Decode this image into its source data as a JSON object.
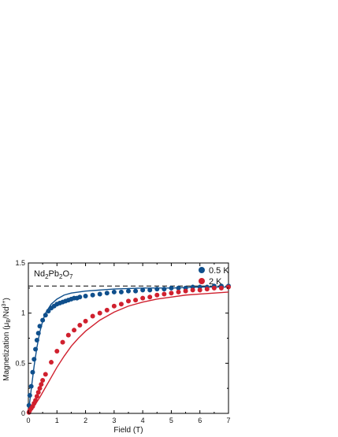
{
  "chart_data": {
    "type": "scatter",
    "annotation": "Nd2Pb2O7",
    "xlabel": "Field (T)",
    "ylabel": "Magnetization (μB/Nd3+)",
    "xlim": [
      0,
      7
    ],
    "ylim": [
      0,
      1.5
    ],
    "x_ticks": [
      "0",
      "1",
      "2",
      "3",
      "4",
      "5",
      "6",
      "7"
    ],
    "y_ticks": [
      "0",
      "0.5",
      "1",
      "1.5"
    ],
    "legend_position": "top-right",
    "saturation_line": 1.27,
    "series": [
      {
        "name": "0.5 K",
        "color": "#0f4f8c",
        "points": [
          [
            0.02,
            0.08
          ],
          [
            0.05,
            0.18
          ],
          [
            0.1,
            0.27
          ],
          [
            0.15,
            0.41
          ],
          [
            0.2,
            0.54
          ],
          [
            0.25,
            0.64
          ],
          [
            0.3,
            0.73
          ],
          [
            0.35,
            0.8
          ],
          [
            0.4,
            0.87
          ],
          [
            0.5,
            0.93
          ],
          [
            0.6,
            0.98
          ],
          [
            0.7,
            1.02
          ],
          [
            0.8,
            1.05
          ],
          [
            0.9,
            1.07
          ],
          [
            1.0,
            1.09
          ],
          [
            1.1,
            1.1
          ],
          [
            1.2,
            1.11
          ],
          [
            1.3,
            1.12
          ],
          [
            1.4,
            1.13
          ],
          [
            1.5,
            1.14
          ],
          [
            1.6,
            1.15
          ],
          [
            1.7,
            1.15
          ],
          [
            1.8,
            1.16
          ],
          [
            2.0,
            1.17
          ],
          [
            2.25,
            1.18
          ],
          [
            2.5,
            1.19
          ],
          [
            2.75,
            1.2
          ],
          [
            3.0,
            1.21
          ],
          [
            3.25,
            1.21
          ],
          [
            3.5,
            1.22
          ],
          [
            3.75,
            1.22
          ],
          [
            4.0,
            1.23
          ],
          [
            4.25,
            1.23
          ],
          [
            4.5,
            1.24
          ],
          [
            4.75,
            1.24
          ],
          [
            5.0,
            1.25
          ],
          [
            5.25,
            1.25
          ],
          [
            5.5,
            1.25
          ],
          [
            5.75,
            1.26
          ],
          [
            6.0,
            1.26
          ],
          [
            6.25,
            1.26
          ],
          [
            6.5,
            1.27
          ],
          [
            6.75,
            1.27
          ],
          [
            7.0,
            1.27
          ]
        ]
      },
      {
        "name": "2 K",
        "color": "#d0202e",
        "points": [
          [
            0.02,
            0.01
          ],
          [
            0.05,
            0.03
          ],
          [
            0.1,
            0.05
          ],
          [
            0.15,
            0.07
          ],
          [
            0.2,
            0.1
          ],
          [
            0.25,
            0.13
          ],
          [
            0.3,
            0.17
          ],
          [
            0.35,
            0.21
          ],
          [
            0.4,
            0.25
          ],
          [
            0.45,
            0.29
          ],
          [
            0.5,
            0.33
          ],
          [
            0.6,
            0.39
          ],
          [
            0.8,
            0.51
          ],
          [
            1.0,
            0.62
          ],
          [
            1.2,
            0.71
          ],
          [
            1.4,
            0.78
          ],
          [
            1.6,
            0.83
          ],
          [
            1.8,
            0.88
          ],
          [
            2.0,
            0.92
          ],
          [
            2.25,
            0.97
          ],
          [
            2.5,
            1.0
          ],
          [
            2.75,
            1.03
          ],
          [
            3.0,
            1.07
          ],
          [
            3.25,
            1.09
          ],
          [
            3.5,
            1.12
          ],
          [
            3.75,
            1.13
          ],
          [
            4.0,
            1.15
          ],
          [
            4.25,
            1.16
          ],
          [
            4.5,
            1.18
          ],
          [
            4.75,
            1.19
          ],
          [
            5.0,
            1.2
          ],
          [
            5.25,
            1.21
          ],
          [
            5.5,
            1.22
          ],
          [
            5.75,
            1.23
          ],
          [
            6.0,
            1.23
          ],
          [
            6.25,
            1.24
          ],
          [
            6.5,
            1.25
          ],
          [
            6.75,
            1.25
          ],
          [
            7.0,
            1.26
          ]
        ]
      }
    ],
    "fit_curves": [
      {
        "color": "#0f4f8c",
        "points": [
          [
            0,
            0
          ],
          [
            0.1,
            0.24
          ],
          [
            0.2,
            0.47
          ],
          [
            0.3,
            0.66
          ],
          [
            0.4,
            0.81
          ],
          [
            0.5,
            0.92
          ],
          [
            0.6,
            1.0
          ],
          [
            0.8,
            1.09
          ],
          [
            1.0,
            1.14
          ],
          [
            1.25,
            1.18
          ],
          [
            1.5,
            1.2
          ],
          [
            2.0,
            1.22
          ],
          [
            2.5,
            1.23
          ],
          [
            3.0,
            1.24
          ],
          [
            4.0,
            1.25
          ],
          [
            5.0,
            1.25
          ],
          [
            6.0,
            1.26
          ],
          [
            7.0,
            1.26
          ]
        ]
      },
      {
        "color": "#d0202e",
        "points": [
          [
            0,
            0
          ],
          [
            0.2,
            0.07
          ],
          [
            0.4,
            0.16
          ],
          [
            0.6,
            0.26
          ],
          [
            0.8,
            0.36
          ],
          [
            1.0,
            0.46
          ],
          [
            1.25,
            0.57
          ],
          [
            1.5,
            0.67
          ],
          [
            1.75,
            0.75
          ],
          [
            2.0,
            0.82
          ],
          [
            2.5,
            0.93
          ],
          [
            3.0,
            1.01
          ],
          [
            3.5,
            1.07
          ],
          [
            4.0,
            1.11
          ],
          [
            4.5,
            1.14
          ],
          [
            5.0,
            1.16
          ],
          [
            5.5,
            1.18
          ],
          [
            6.0,
            1.19
          ],
          [
            6.5,
            1.2
          ],
          [
            7.0,
            1.21
          ]
        ]
      }
    ]
  }
}
